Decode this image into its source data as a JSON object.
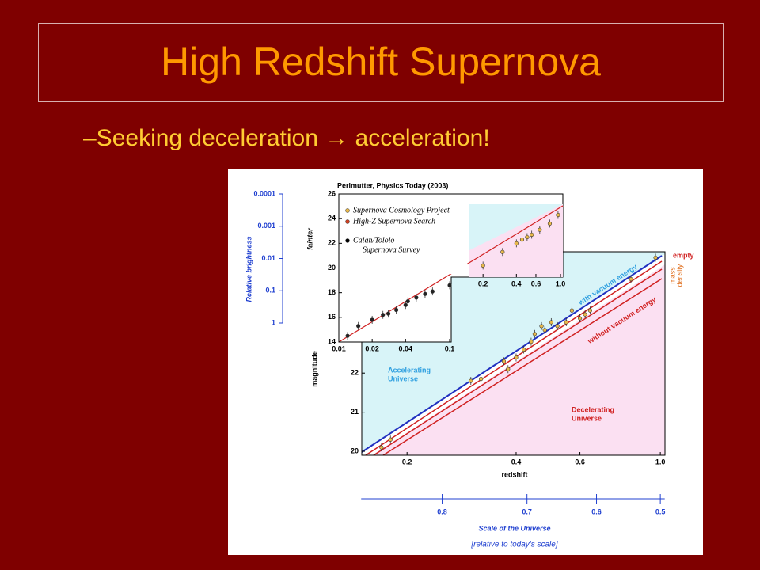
{
  "title": "High Redshift Supernova",
  "bullet": "–Seeking deceleration → acceleration!",
  "figure": {
    "credit": "Perlmutter, Physics Today (2003)",
    "brightness_axis": {
      "label": "Relative brightness",
      "log_y": true,
      "ylim": [
        0.0001,
        1
      ],
      "yticks": [
        0.0001,
        0.001,
        0.01,
        0.1,
        1
      ]
    },
    "inset": {
      "ylabel": "fainter",
      "log_x": true,
      "xlim": [
        0.01,
        1.05
      ],
      "ylim": [
        14,
        26
      ],
      "xticks": [
        0.01,
        0.02,
        0.04,
        0.1,
        0.2,
        0.4,
        0.6,
        {
          "value": 1,
          "label": "1.0"
        }
      ],
      "yticks": [
        14,
        16,
        18,
        20,
        22,
        24,
        26
      ],
      "legend": [
        {
          "label": [
            "Supernova Cosmology Project"
          ],
          "color": "#e8b84a"
        },
        {
          "label": [
            "High-Z Supernova Search"
          ],
          "color": "#d04020"
        },
        {
          "label": [
            "Calan/Tololo",
            "Supernova Survey"
          ],
          "color": "#000000"
        }
      ],
      "x": [
        0.012,
        0.015,
        0.02,
        0.025,
        0.028,
        0.033,
        0.04,
        0.042,
        0.05,
        0.06,
        0.07,
        0.1,
        0.2,
        0.3,
        0.4,
        0.45,
        0.5,
        0.55,
        0.65,
        0.8,
        0.95
      ],
      "y": [
        14.5,
        15.3,
        15.8,
        16.2,
        16.3,
        16.6,
        17.0,
        17.3,
        17.6,
        17.9,
        18.1,
        18.6,
        20.2,
        21.3,
        22.0,
        22.3,
        22.5,
        22.7,
        23.1,
        23.6,
        24.3
      ]
    },
    "main": {
      "xlabel": "redshift",
      "ylabel": "magnitude",
      "log_x": true,
      "xlim": [
        0.15,
        1.03
      ],
      "ylim": [
        19.9,
        25.1
      ],
      "xticks": [
        0.2,
        0.4,
        0.6,
        {
          "value": 1,
          "label": "1.0"
        }
      ],
      "yticks": [
        20,
        21,
        22
      ],
      "accelerating": [
        "Accelerating",
        "Universe"
      ],
      "decelerating": [
        "Decelerating",
        "Universe"
      ],
      "with_vacuum": "with vacuum energy",
      "without_vacuum": "without vacuum energy",
      "empty": "empty",
      "mass_density": [
        "mass",
        "density"
      ],
      "x": [
        0.17,
        0.18,
        0.3,
        0.32,
        0.37,
        0.38,
        0.4,
        0.42,
        0.44,
        0.45,
        0.47,
        0.48,
        0.5,
        0.52,
        0.55,
        0.57,
        0.6,
        0.62,
        0.64,
        0.83,
        0.97
      ],
      "y": [
        20.1,
        20.3,
        21.8,
        21.85,
        22.3,
        22.1,
        22.4,
        22.6,
        22.8,
        23.0,
        23.2,
        23.1,
        23.3,
        23.2,
        23.3,
        23.6,
        23.4,
        23.5,
        23.6,
        24.4,
        24.95
      ]
    },
    "scale_axis": {
      "label": "Scale of the Universe",
      "sublabel": "[relative to today's scale]",
      "xlim": [
        0.87,
        0.493
      ],
      "xticks": [
        0.8,
        0.7,
        0.6,
        0.5
      ]
    }
  }
}
